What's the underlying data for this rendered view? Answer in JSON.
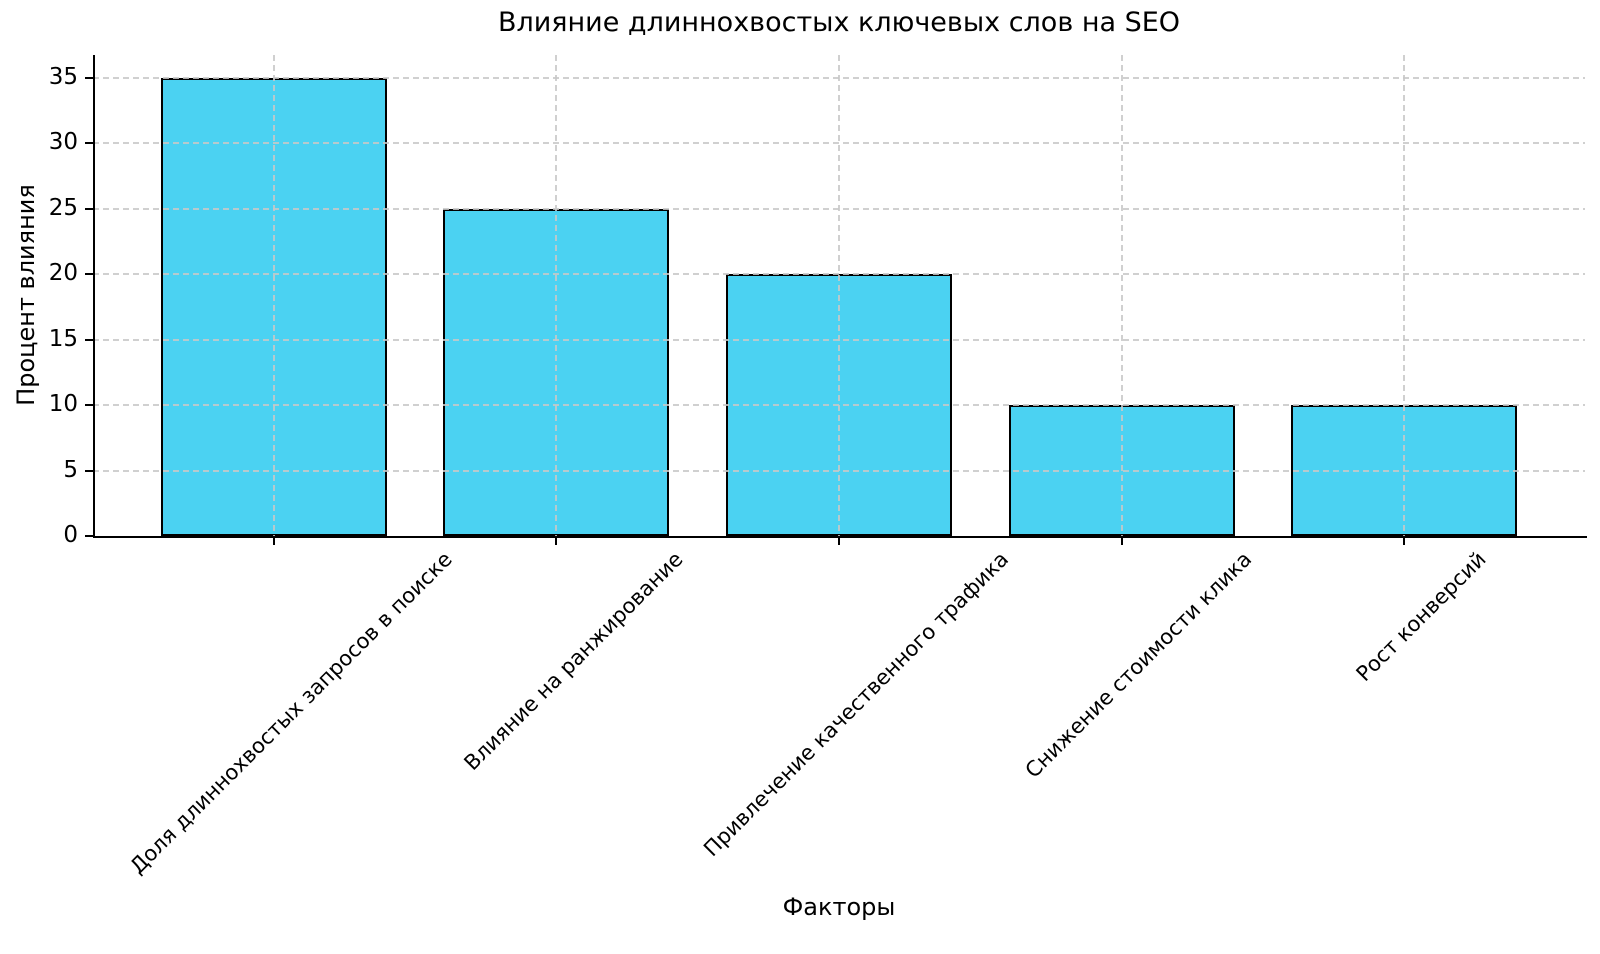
{
  "chart_data": {
    "type": "bar",
    "title": "Влияние длиннохвостых ключевых слов на SEO",
    "xlabel": "Факторы",
    "ylabel": "Процент влияния",
    "categories": [
      "Доля длиннохвостых запросов в поиске",
      "Влияние на ранжирование",
      "Привлечение качественного трафика",
      "Снижение стоимости клика",
      "Рост конверсий"
    ],
    "values": [
      35,
      25,
      20,
      10,
      10
    ],
    "yticks": [
      0,
      5,
      10,
      15,
      20,
      25,
      30,
      35
    ],
    "ylim": [
      0,
      36.75
    ],
    "xlim": [
      -0.64,
      4.64
    ],
    "bar_width": 0.8,
    "xtick_rotation_deg": 45,
    "grid": {
      "visible": true,
      "style": "dashed",
      "axes": "both",
      "above_bars": true
    },
    "legend": null,
    "colors": {
      "bar_fill": "#4BD2F2",
      "bar_edge": "#000000",
      "grid": "#c8c8c8",
      "text": "#000000",
      "background": "#ffffff"
    }
  }
}
